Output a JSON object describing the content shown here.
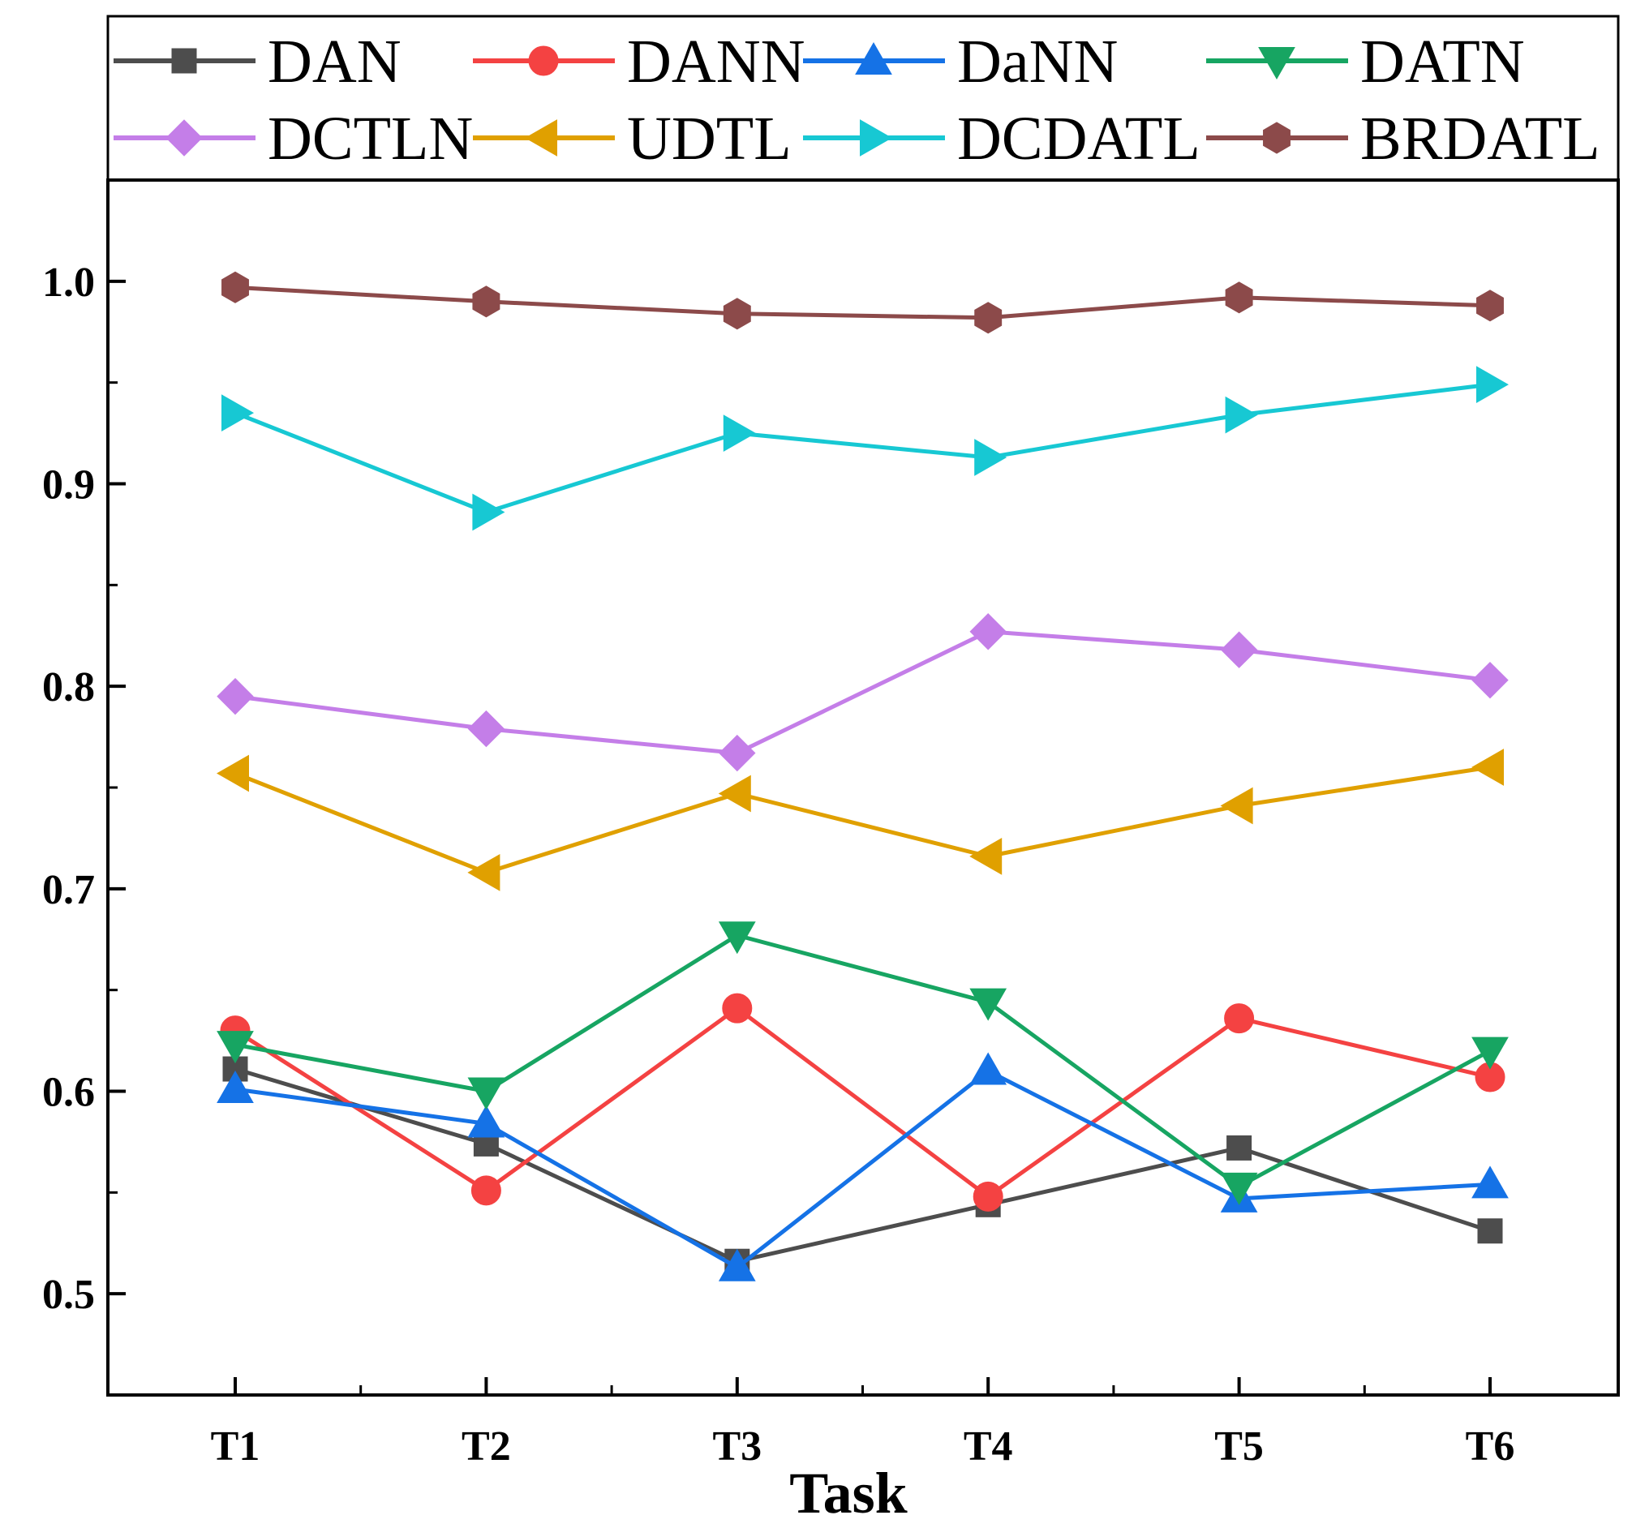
{
  "chart_data": {
    "type": "line",
    "title": "",
    "xlabel": "Task",
    "ylabel": "",
    "categories": [
      "T1",
      "T2",
      "T3",
      "T4",
      "T5",
      "T6"
    ],
    "ylim": [
      0.45,
      1.05
    ],
    "yticks": [
      0.5,
      0.6,
      0.7,
      0.8,
      0.9,
      1.0
    ],
    "ytick_labels": [
      "0.5",
      "0.6",
      "0.7",
      "0.8",
      "0.9",
      "1.0"
    ],
    "grid": false,
    "legend_position": "top",
    "series": [
      {
        "name": "DAN",
        "color": "#4d4d4d",
        "marker": "square",
        "values": [
          0.611,
          0.574,
          0.516,
          0.544,
          0.572,
          0.531
        ]
      },
      {
        "name": "DANN",
        "color": "#f44242",
        "marker": "circle",
        "values": [
          0.63,
          0.551,
          0.641,
          0.548,
          0.636,
          0.607
        ]
      },
      {
        "name": "DaNN",
        "color": "#1572e6",
        "marker": "triangle-up",
        "values": [
          0.601,
          0.584,
          0.513,
          0.61,
          0.547,
          0.554
        ]
      },
      {
        "name": "DATN",
        "color": "#17a562",
        "marker": "triangle-down",
        "values": [
          0.623,
          0.6,
          0.677,
          0.644,
          0.553,
          0.62
        ]
      },
      {
        "name": "DCTLN",
        "color": "#c47ee8",
        "marker": "diamond",
        "values": [
          0.795,
          0.779,
          0.767,
          0.827,
          0.818,
          0.803
        ]
      },
      {
        "name": "UDTL",
        "color": "#e0a000",
        "marker": "triangle-left",
        "values": [
          0.757,
          0.708,
          0.747,
          0.716,
          0.741,
          0.76
        ]
      },
      {
        "name": "DCDATL",
        "color": "#17c8d3",
        "marker": "triangle-right",
        "values": [
          0.935,
          0.886,
          0.925,
          0.913,
          0.934,
          0.949
        ]
      },
      {
        "name": "BRDATL",
        "color": "#8c4a4a",
        "marker": "hexagon",
        "values": [
          0.997,
          0.99,
          0.984,
          0.982,
          0.992,
          0.988
        ]
      }
    ]
  }
}
